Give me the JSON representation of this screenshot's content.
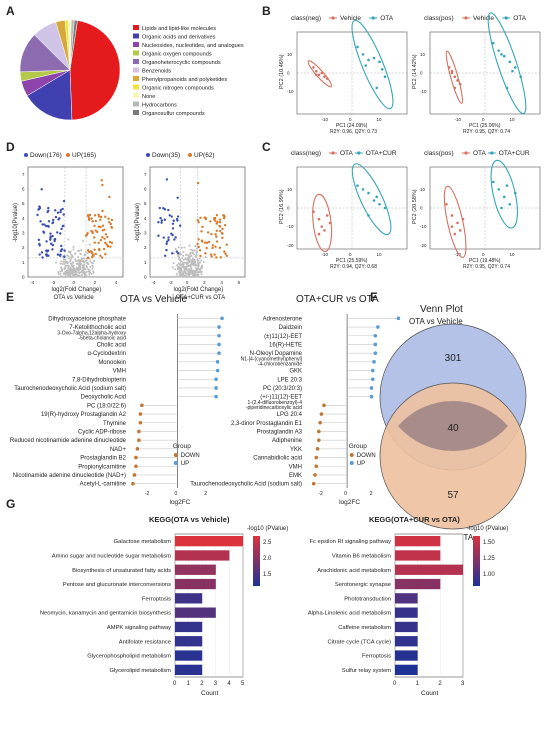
{
  "panel_letters": [
    "A",
    "B",
    "C",
    "D",
    "E",
    "F",
    "G"
  ],
  "chart_data": [
    {
      "id": "A",
      "type": "pie",
      "categories": [
        "Lipids and lipid-like molecules",
        "Organic acids and derivatives",
        "Nucleosides, nucleotides, and analogues",
        "Organic oxygen compounds",
        "Organoheterocyclic compounds",
        "Benzenoids",
        "Phenylpropanoids and polyketides",
        "Organic nitrogen compounds",
        "None",
        "Hydrocarbons",
        "Organosulfur compounds"
      ],
      "values": [
        47,
        17,
        5,
        3,
        13,
        8,
        3,
        1,
        1,
        1,
        1
      ],
      "colors": [
        "#e41a1c",
        "#4040b0",
        "#8e44ad",
        "#b4c84b",
        "#8c6bb1",
        "#cfc3e6",
        "#d6a83a",
        "#f2e33b",
        "#f7f7b5",
        "#b8b8b8",
        "#7a7a7a"
      ]
    },
    {
      "id": "B-neg",
      "type": "scatter",
      "title": "class(neg)",
      "legend": [
        "Vehicle",
        "OTA"
      ],
      "xlabel": "PC1 (24.09%)",
      "stats": "R2Y: 0.96, Q2Y: 0.73",
      "ylabel": "PC2 (10.46%)",
      "xticks": [
        "-10",
        "0",
        "10"
      ],
      "yticks": [
        "10",
        "0",
        "-10"
      ],
      "series": [
        {
          "name": "Vehicle",
          "color": "#d9705f",
          "x": [
            -14,
            -13,
            -12,
            -11,
            -10,
            -9,
            -13
          ],
          "y": [
            3,
            1,
            -1,
            0,
            -2,
            -3,
            -1
          ]
        },
        {
          "name": "OTA",
          "color": "#33a6b8",
          "x": [
            2,
            4,
            6,
            8,
            10,
            12,
            9,
            5,
            11
          ],
          "y": [
            14,
            10,
            7,
            8,
            6,
            -2,
            -8,
            4,
            2
          ]
        }
      ]
    },
    {
      "id": "B-pos",
      "type": "scatter",
      "title": "class(pos)",
      "legend": [
        "Vehicle",
        "OTA"
      ],
      "xlabel": "PC1 (25.06%)",
      "stats": "R2Y: 0.95, Q2Y: 0.74",
      "ylabel": "PC2 (14.42%)",
      "xticks": [
        "-10",
        "0",
        "10"
      ],
      "yticks": [
        "10",
        "0",
        "-10"
      ],
      "series": [
        {
          "name": "Vehicle",
          "color": "#d9705f",
          "x": [
            -13,
            -12,
            -11,
            -10,
            -9,
            -11,
            -12
          ],
          "y": [
            3,
            1,
            -2,
            -4,
            -6,
            -8,
            0
          ]
        },
        {
          "name": "OTA",
          "color": "#33a6b8",
          "x": [
            3,
            5,
            7,
            9,
            11,
            13,
            8,
            6,
            10
          ],
          "y": [
            16,
            12,
            9,
            6,
            3,
            -2,
            -8,
            10,
            1
          ]
        }
      ]
    },
    {
      "id": "C-neg",
      "type": "scatter",
      "title": "class(neg)",
      "legend": [
        "OTA",
        "OTA+CUR"
      ],
      "xlabel": "PC1 (25.59%)",
      "stats": "R2Y: 0.94, Q2Y: 0.68",
      "ylabel": "PC2 (16.99%)",
      "xticks": [
        "-10",
        "0",
        "10"
      ],
      "yticks": [
        "10",
        "0",
        "-10",
        "-20"
      ],
      "series": [
        {
          "name": "OTA",
          "color": "#d9705f",
          "x": [
            -14,
            -12,
            -11,
            -10,
            -9,
            -8,
            -12
          ],
          "y": [
            -2,
            -6,
            -10,
            -12,
            -4,
            -8,
            -14
          ]
        },
        {
          "name": "OTA+CUR",
          "color": "#33a6b8",
          "x": [
            2,
            4,
            6,
            8,
            10,
            12,
            6,
            9
          ],
          "y": [
            12,
            10,
            8,
            4,
            2,
            0,
            -4,
            6
          ]
        }
      ]
    },
    {
      "id": "C-pos",
      "type": "scatter",
      "title": "class(pos)",
      "legend": [
        "OTA",
        "OTA+CUR"
      ],
      "xlabel": "PC1 (19.48%)",
      "stats": "R2Y: 0.95, Q2Y: 0.74",
      "ylabel": "PC2 (20.58%)",
      "xticks": [
        "-10",
        "0",
        "10"
      ],
      "yticks": [
        "10",
        "0",
        "-10",
        "-20"
      ],
      "series": [
        {
          "name": "OTA",
          "color": "#d9705f",
          "x": [
            -14,
            -12,
            -10,
            -9,
            -11,
            -8,
            -12
          ],
          "y": [
            2,
            -4,
            -8,
            -12,
            -14,
            -6,
            -10
          ]
        },
        {
          "name": "OTA+CUR",
          "color": "#33a6b8",
          "x": [
            3,
            5,
            7,
            9,
            11,
            6,
            8
          ],
          "y": [
            14,
            10,
            6,
            2,
            8,
            0,
            12
          ]
        }
      ]
    },
    {
      "id": "D-left",
      "type": "scatter",
      "legend": [
        "Down(176)",
        "UP(165)"
      ],
      "xlabel": "log2(Fold Change)",
      "subtitle": "OTA vs Vehicle",
      "ylabel": "-log10(Pvalue)",
      "xticks": [
        "-4",
        "-2",
        "0",
        "2",
        "4"
      ],
      "yticks": [
        "0",
        "1",
        "2",
        "3",
        "4",
        "5",
        "6",
        "7"
      ],
      "xlim": [
        -4.5,
        4.5
      ],
      "ylim": [
        0,
        7.5
      ],
      "down_count": 176,
      "up_count": 165
    },
    {
      "id": "D-right",
      "type": "scatter",
      "legend": [
        "Down(35)",
        "UP(62)"
      ],
      "xlabel": "log2(Fold Change)",
      "subtitle": "OTA+CUR vs OTA",
      "ylabel": "-log10(Pvalue)",
      "xticks": [
        "-4",
        "-2",
        "0",
        "2",
        "4",
        "6"
      ],
      "yticks": [
        "0",
        "1",
        "2",
        "3",
        "4",
        "5",
        "6",
        "7"
      ],
      "xlim": [
        -4.5,
        6.5
      ],
      "ylim": [
        0,
        7.5
      ],
      "down_count": 35,
      "up_count": 62
    },
    {
      "id": "E-left",
      "type": "lollipop",
      "title": "OTA vs Vehicle",
      "xlabel": "log2FC",
      "legend_title": "Group",
      "legend": [
        "DOWN",
        "UP"
      ],
      "xticks": [
        "-2",
        "0",
        "2"
      ],
      "xlim": [
        -3.2,
        3.2
      ],
      "categories": [
        "Dihydroxyacetone phosphate",
        "7-Ketolithocholic acid",
        "3-Oxo-7alpha,12alpha-hydroxy -5beta-cholanoic acid",
        "Cholic acid",
        "α-Cyclodextrin",
        "Monoolein",
        "VMH",
        "7,8-Dihydrobiopterin",
        "Taurochenodeoxycholic Acid (sodium salt)",
        "Deoxycholic Acid",
        "PC (18:0/22:6)",
        "19(R)-hydroxy Prostaglandin A2",
        "Thymine",
        "Cyclic ADP-ribose",
        "Reduced nicotinamide adenine dinucleotide",
        "NAD+",
        "Prostaglandin B2",
        "Propionylcarnitine",
        "Nicotinamide adenine dinucleotide (NAD+)",
        "Acetyl-L-carnitine"
      ],
      "values": [
        3.0,
        2.8,
        2.8,
        2.8,
        2.8,
        2.7,
        2.7,
        2.6,
        2.6,
        2.6,
        -2.4,
        -2.5,
        -2.5,
        -2.6,
        -2.6,
        -2.7,
        -2.8,
        -2.8,
        -2.9,
        -3.0
      ]
    },
    {
      "id": "E-right",
      "type": "lollipop",
      "title": "OTA+CUR vs OTA",
      "xlabel": "log2FC",
      "legend_title": "Group",
      "legend": [
        "DOWN",
        "UP"
      ],
      "xticks": [
        "-2",
        "0",
        "2"
      ],
      "xlim": [
        -3.2,
        4.2
      ],
      "categories": [
        "Adrenosterone",
        "Daidzein",
        "(±)11(12)-EET",
        "16(R)-HETE",
        "N-Oleoyl Dopamine",
        "N1-[4-(cyanomethyl)phenyl] -4-chlorobenzamide",
        "GKK",
        "LPE 20:3",
        "PC (20:3/20:3)",
        "(+/-)11(12)-EET",
        "1-(2,4-difluorobenzoyl)-4 -piperidinecarboxylic acid",
        "LPG 20:4",
        "2,3-dinor Prostaglandin E1",
        "Prostaglandin A3",
        "Adiphenine",
        "YKK",
        "Cannabidiolic acid",
        "VMH",
        "EMK",
        "Taurochenodeoxycholic Acid (sodium salt)"
      ],
      "values": [
        4.0,
        2.4,
        2.2,
        2.2,
        2.2,
        2.1,
        2.0,
        2.0,
        1.9,
        1.9,
        -1.8,
        -2.0,
        -2.1,
        -2.2,
        -2.2,
        -2.3,
        -2.4,
        -2.4,
        -2.5,
        -2.6
      ]
    },
    {
      "id": "F",
      "type": "venn",
      "title": "Venn Plot",
      "set_labels": [
        "OTA vs Vehicle",
        "OTA+CUR vs OTA"
      ],
      "only_a": 301,
      "both": 40,
      "only_b": 57,
      "colors": [
        "#b3c2e6",
        "#edc19f"
      ]
    },
    {
      "id": "G-left",
      "type": "bar",
      "title": "KEGG(OTA vs Vehicle)",
      "xlabel": "Count",
      "legend_title": "-log10 (PValue)",
      "legend_ticks": [
        "2.5",
        "2.0",
        "1.5"
      ],
      "xticks": [
        "0",
        "1",
        "2",
        "3",
        "4",
        "5"
      ],
      "xlim": [
        0,
        5
      ],
      "categories": [
        "Galactose metabolism",
        "Amino sugar and nucleotide sugar metabolism",
        "Biosynthesis of unsaturated fatty acids",
        "Pentose and glucuronate interconversions",
        "Ferroptosis",
        "Neomycin, kanamycin and gentamicin biosynthesis",
        "AMPK signaling pathway",
        "Antifolate resistance",
        "Glycerophospholipid metabolism",
        "Glycerolipid metabolism"
      ],
      "values": [
        5,
        4,
        3,
        3,
        2,
        3,
        2,
        2,
        2,
        2
      ],
      "pvalues": [
        2.8,
        2.4,
        2.1,
        2.0,
        1.3,
        1.5,
        1.2,
        1.2,
        1.1,
        1.1
      ]
    },
    {
      "id": "G-right",
      "type": "bar",
      "title": "KEGG(OTA+CUR vs OTA)",
      "xlabel": "Count",
      "legend_title": "-log10 (PValue)",
      "legend_ticks": [
        "1.50",
        "1.25",
        "1.00"
      ],
      "xticks": [
        "0",
        "1",
        "2",
        "3"
      ],
      "xlim": [
        0,
        3
      ],
      "categories": [
        "Fc epsilon RI signaling pathway",
        "Vitamin B6 metabolism",
        "Arachidonic acid metabolism",
        "Serotonergic synapse",
        "Phototransduction",
        "Alpha-Linolenic acid metabolism",
        "Caffeine metabolism",
        "Citrate cycle (TCA cycle)",
        "Ferroptosis",
        "Sulfur relay system"
      ],
      "values": [
        2,
        2,
        3,
        2,
        1,
        1,
        1,
        1,
        1,
        1
      ],
      "pvalues": [
        1.55,
        1.5,
        1.45,
        1.3,
        1.1,
        1.0,
        1.0,
        0.98,
        0.95,
        0.92
      ]
    }
  ]
}
